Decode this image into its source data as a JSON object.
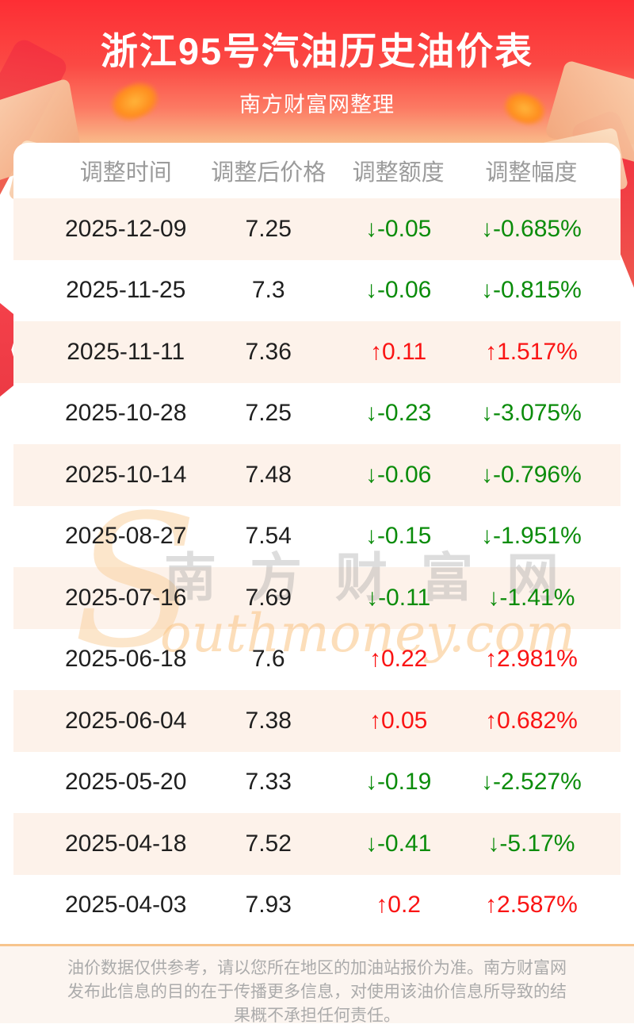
{
  "header": {
    "title": "浙江95号汽油历史油价表",
    "subtitle": "南方财富网整理",
    "bg_top_color": "#fd2e34",
    "bg_bottom_color": "#f9bd8b"
  },
  "table": {
    "columns": [
      "调整时间",
      "调整后价格",
      "调整额度",
      "调整幅度"
    ],
    "colors": {
      "down": "#0b8c0b",
      "up": "#fa1414",
      "stripe": "#fdf2ea",
      "header_text": "#9b9b9b"
    },
    "rows": [
      {
        "date": "2025-12-09",
        "price": "7.25",
        "change": "↓-0.05",
        "pct": "↓-0.685%",
        "dir": "down"
      },
      {
        "date": "2025-11-25",
        "price": "7.3",
        "change": "↓-0.06",
        "pct": "↓-0.815%",
        "dir": "down"
      },
      {
        "date": "2025-11-11",
        "price": "7.36",
        "change": "↑0.11",
        "pct": "↑1.517%",
        "dir": "up"
      },
      {
        "date": "2025-10-28",
        "price": "7.25",
        "change": "↓-0.23",
        "pct": "↓-3.075%",
        "dir": "down"
      },
      {
        "date": "2025-10-14",
        "price": "7.48",
        "change": "↓-0.06",
        "pct": "↓-0.796%",
        "dir": "down"
      },
      {
        "date": "2025-08-27",
        "price": "7.54",
        "change": "↓-0.15",
        "pct": "↓-1.951%",
        "dir": "down"
      },
      {
        "date": "2025-07-16",
        "price": "7.69",
        "change": "↓-0.11",
        "pct": "↓-1.41%",
        "dir": "down"
      },
      {
        "date": "2025-06-18",
        "price": "7.6",
        "change": "↑0.22",
        "pct": "↑2.981%",
        "dir": "up"
      },
      {
        "date": "2025-06-04",
        "price": "7.38",
        "change": "↑0.05",
        "pct": "↑0.682%",
        "dir": "up"
      },
      {
        "date": "2025-05-20",
        "price": "7.33",
        "change": "↓-0.19",
        "pct": "↓-2.527%",
        "dir": "down"
      },
      {
        "date": "2025-04-18",
        "price": "7.52",
        "change": "↓-0.41",
        "pct": "↓-5.17%",
        "dir": "down"
      },
      {
        "date": "2025-04-03",
        "price": "7.93",
        "change": "↑0.2",
        "pct": "↑2.587%",
        "dir": "up"
      }
    ]
  },
  "watermark": {
    "initial": "S",
    "cn": "南方财富网",
    "en": "outhmoney.com"
  },
  "footer": {
    "lines": [
      "油价数据仅供参考，请以您所在地区的加油站报价为准。南方财富网",
      "发布此信息的目的在于传播更多信息，对使用该油价信息所导致的结",
      "果概不承担任何责任。"
    ]
  }
}
